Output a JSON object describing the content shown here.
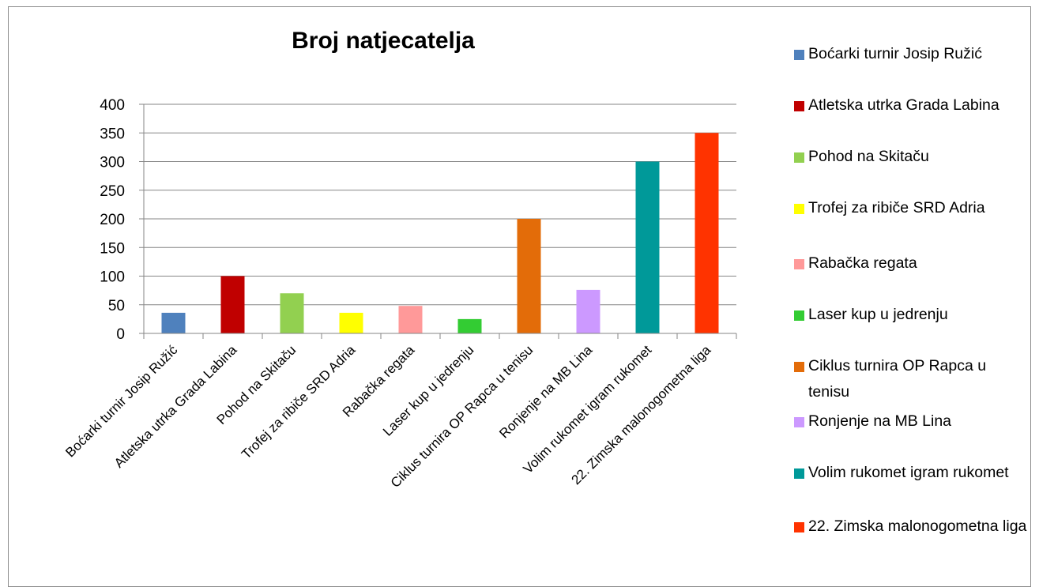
{
  "chart_data": {
    "type": "bar",
    "title": "Broj natjecatelja",
    "categories": [
      "Boćarki turnir Josip Ružić",
      "Atletska utrka Grada Labina",
      "Pohod na Skitaču",
      "Trofej za ribiče SRD Adria",
      "Rabačka regata",
      "Laser kup u jedrenju",
      "Ciklus turnira OP Rapca u tenisu",
      "Ronjenje na MB Lina",
      "Volim rukomet igram rukomet",
      "22. Zimska malonogometna liga"
    ],
    "values": [
      36,
      100,
      70,
      36,
      48,
      25,
      200,
      76,
      300,
      350
    ],
    "colors": [
      "#4f81bd",
      "#c00000",
      "#92d050",
      "#ffff00",
      "#ff9999",
      "#33cc33",
      "#e36c09",
      "#cc99ff",
      "#009999",
      "#ff3300"
    ],
    "ylim": [
      0,
      400
    ],
    "yticks": [
      0,
      50,
      100,
      150,
      200,
      250,
      300,
      350,
      400
    ],
    "grid": true,
    "legend_position": "right"
  }
}
